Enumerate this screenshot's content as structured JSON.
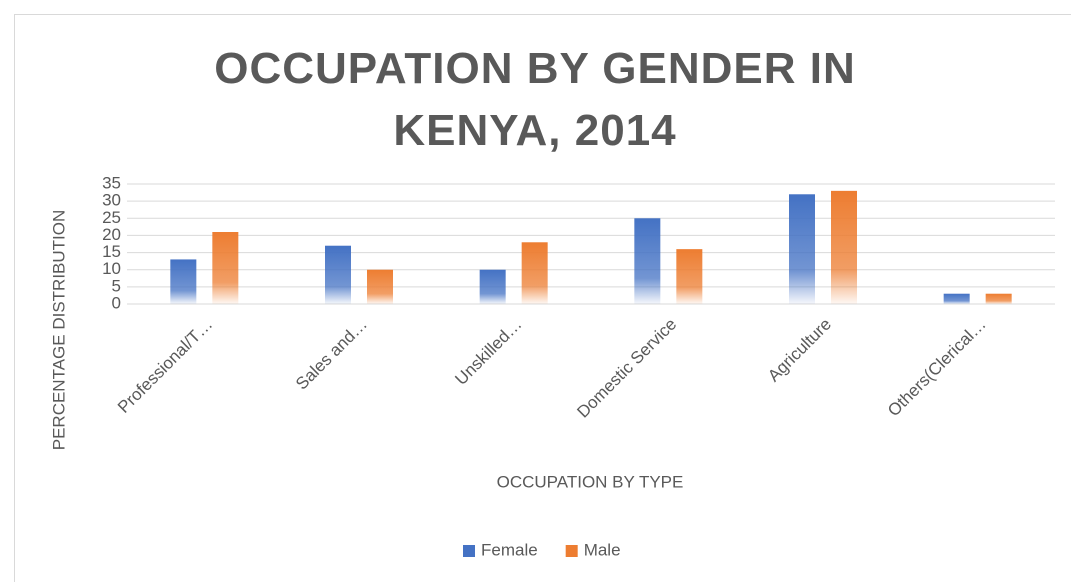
{
  "chart_data": {
    "type": "bar",
    "title": "OCCUPATION BY GENDER IN KENYA, 2014",
    "xlabel": "OCCUPATION BY TYPE",
    "ylabel": "PERCENTAGE DISTRIBUTION",
    "categories": [
      "Professional/T…",
      "Sales and…",
      "Unskilled…",
      "Domestic Service",
      "Agriculture",
      "Others(Clerical…"
    ],
    "series": [
      {
        "name": "Female",
        "color": "#4472c4",
        "values": [
          13,
          17,
          10,
          25,
          32,
          3
        ]
      },
      {
        "name": "Male",
        "color": "#ed7d31",
        "values": [
          21,
          10,
          18,
          16,
          33,
          3
        ]
      }
    ],
    "ylim": [
      0,
      35
    ],
    "yticks": [
      0,
      5,
      10,
      15,
      20,
      25,
      30,
      35
    ],
    "grid": true,
    "legend": "bottom"
  }
}
